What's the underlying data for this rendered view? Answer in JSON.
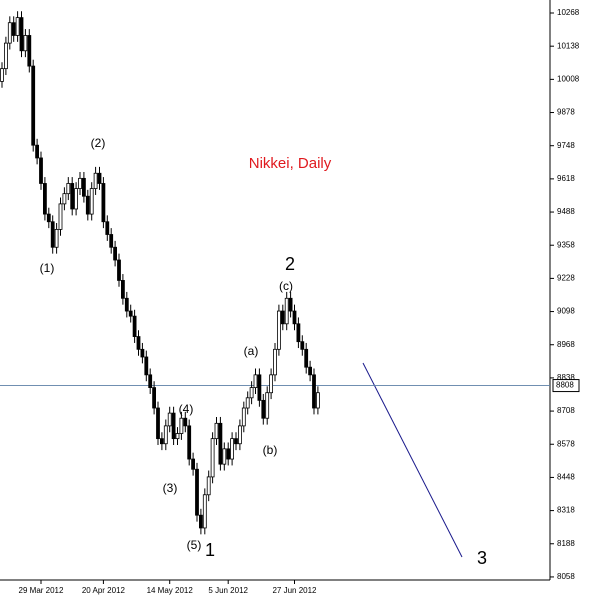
{
  "chart_data": {
    "type": "candlestick",
    "title": "Nikkei, Daily",
    "categories": [
      null,
      null,
      null,
      null,
      null,
      null,
      null,
      null,
      null,
      null,
      "29 Mar 2012",
      null,
      null,
      null,
      null,
      null,
      null,
      null,
      null,
      null,
      null,
      null,
      null,
      null,
      null,
      null,
      "20 Apr 2012",
      null,
      null,
      null,
      null,
      null,
      null,
      null,
      null,
      null,
      null,
      null,
      null,
      null,
      null,
      null,
      null,
      "14 May 2012",
      null,
      null,
      null,
      null,
      null,
      null,
      null,
      null,
      null,
      null,
      null,
      null,
      null,
      null,
      "5 Jun 2012",
      null,
      null,
      null,
      null,
      null,
      null,
      null,
      null,
      null,
      null,
      null,
      null,
      null,
      null,
      null,
      null,
      "27 Jun 2012",
      null,
      null,
      null,
      null,
      null,
      null
    ],
    "open": [
      10000,
      10050,
      10150,
      10230,
      10180,
      10250,
      10120,
      10180,
      10060,
      9750,
      9700,
      9600,
      9480,
      9450,
      9350,
      9420,
      9520,
      9560,
      9600,
      9500,
      9580,
      9620,
      9550,
      9480,
      9580,
      9640,
      9600,
      9450,
      9400,
      9350,
      9300,
      9220,
      9150,
      9100,
      9080,
      9000,
      8950,
      8920,
      8850,
      8800,
      8720,
      8600,
      8580,
      8650,
      8700,
      8600,
      8620,
      8680,
      8650,
      8520,
      8480,
      8300,
      8250,
      8380,
      8450,
      8600,
      8660,
      8500,
      8560,
      8520,
      8600,
      8580,
      8650,
      8720,
      8760,
      8800,
      8850,
      8750,
      8680,
      8780,
      8850,
      8950,
      9100,
      9050,
      9150,
      9100,
      9050,
      8980,
      8950,
      8880,
      8850,
      8720
    ],
    "high": [
      10075,
      10175,
      10255,
      10255,
      10275,
      10275,
      10205,
      10205,
      10085,
      9775,
      9725,
      9625,
      9505,
      9475,
      9445,
      9545,
      9585,
      9625,
      9625,
      9605,
      9645,
      9645,
      9575,
      9605,
      9665,
      9665,
      9625,
      9475,
      9425,
      9375,
      9325,
      9245,
      9175,
      9125,
      9105,
      9025,
      8975,
      8945,
      8875,
      8825,
      8745,
      8625,
      8675,
      8725,
      8725,
      8645,
      8705,
      8705,
      8675,
      8545,
      8505,
      8325,
      8405,
      8475,
      8625,
      8685,
      8685,
      8585,
      8585,
      8625,
      8625,
      8675,
      8745,
      8785,
      8825,
      8875,
      8875,
      8775,
      8805,
      8875,
      8975,
      9125,
      9125,
      9175,
      9175,
      9125,
      9075,
      9005,
      8975,
      8905,
      8875,
      8805
    ],
    "low": [
      9975,
      10025,
      10125,
      10155,
      10155,
      10095,
      10095,
      10035,
      9725,
      9675,
      9575,
      9455,
      9425,
      9325,
      9325,
      9395,
      9495,
      9535,
      9475,
      9475,
      9555,
      9525,
      9455,
      9455,
      9555,
      9575,
      9425,
      9375,
      9325,
      9275,
      9195,
      9125,
      9075,
      9055,
      8975,
      8925,
      8895,
      8825,
      8775,
      8695,
      8575,
      8555,
      8555,
      8625,
      8575,
      8575,
      8595,
      8625,
      8495,
      8455,
      8275,
      8225,
      8225,
      8355,
      8425,
      8575,
      8475,
      8475,
      8495,
      8495,
      8555,
      8555,
      8625,
      8695,
      8735,
      8775,
      8725,
      8655,
      8655,
      8755,
      8825,
      8925,
      9025,
      9025,
      9075,
      9025,
      8955,
      8925,
      8855,
      8825,
      8695,
      8695
    ],
    "close": [
      10050,
      10150,
      10230,
      10180,
      10250,
      10120,
      10180,
      10060,
      9750,
      9700,
      9600,
      9480,
      9450,
      9350,
      9420,
      9520,
      9560,
      9600,
      9500,
      9580,
      9620,
      9550,
      9480,
      9580,
      9640,
      9600,
      9450,
      9400,
      9350,
      9300,
      9220,
      9150,
      9100,
      9080,
      9000,
      8950,
      8920,
      8850,
      8800,
      8720,
      8600,
      8580,
      8650,
      8700,
      8600,
      8620,
      8680,
      8650,
      8520,
      8480,
      8300,
      8250,
      8380,
      8450,
      8600,
      8660,
      8500,
      8560,
      8520,
      8600,
      8580,
      8650,
      8720,
      8760,
      8800,
      8850,
      8750,
      8680,
      8780,
      8850,
      8950,
      9100,
      9050,
      9150,
      9100,
      9050,
      8980,
      8950,
      8880,
      8850,
      8720,
      8780
    ],
    "ylim": [
      8046,
      10319
    ],
    "yticks": [
      10268,
      10138,
      10008,
      9878,
      9748,
      9618,
      9488,
      9358,
      9228,
      9098,
      8968,
      8838,
      8708,
      8578,
      8448,
      8318,
      8188,
      8058
    ],
    "current_price": 8808,
    "annotations": [
      "(1)",
      "(2)",
      "(3)",
      "(4)",
      "(5)",
      "1",
      "2",
      "(a)",
      "(b)",
      "(c)",
      "3"
    ]
  }
}
